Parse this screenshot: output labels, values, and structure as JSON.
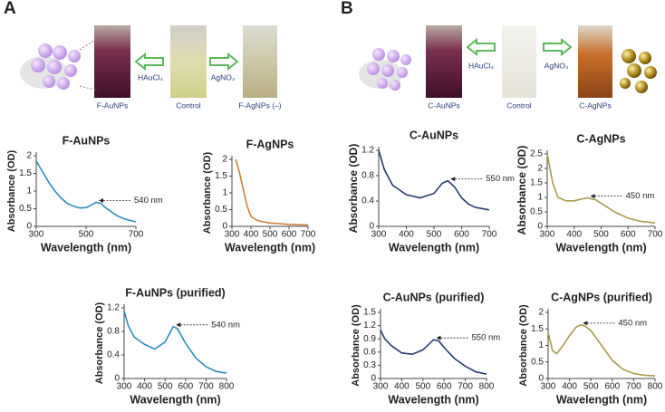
{
  "panels": [
    {
      "label": "A",
      "captions": [
        "F-AuNPs",
        "HAuCl₄",
        "Control",
        "AgNO₃",
        "F-AgNPs (–)"
      ]
    },
    {
      "label": "B",
      "captions": [
        "C-AuNPs",
        "HAuCl₄",
        "Control",
        "AgNO₃",
        "C-AgNPs"
      ]
    }
  ],
  "chart_data": [
    {
      "type": "line",
      "title": "F-AuNPs",
      "x_label": "Wavelength (nm)",
      "y_label": "Absorbance (OD)",
      "xlim": [
        300,
        700
      ],
      "xticks": [
        300,
        500,
        700
      ],
      "ylim": [
        0,
        2
      ],
      "yticks": [
        0,
        0.5,
        1,
        1.5,
        2
      ],
      "annotation": {
        "text": "540 nm",
        "x": 540,
        "y": 0.68
      },
      "series": [
        {
          "color": "#2b8cb8",
          "x": [
            300,
            325,
            350,
            375,
            400,
            425,
            450,
            475,
            500,
            525,
            540,
            560,
            575,
            600,
            625,
            650,
            675,
            700
          ],
          "values": [
            1.85,
            1.55,
            1.25,
            1.0,
            0.8,
            0.65,
            0.57,
            0.52,
            0.53,
            0.62,
            0.68,
            0.65,
            0.55,
            0.42,
            0.3,
            0.22,
            0.17,
            0.13
          ]
        }
      ]
    },
    {
      "type": "line",
      "title": "F-AgNPs",
      "x_label": "Wavelength (nm)",
      "y_label": "Absorbance (OD)",
      "xlim": [
        300,
        700
      ],
      "xticks": [
        300,
        400,
        500,
        600,
        700
      ],
      "ylim": [
        0,
        2
      ],
      "yticks": [
        0,
        0.5,
        1,
        1.5,
        2
      ],
      "series": [
        {
          "color": "#c8813a",
          "x": [
            320,
            340,
            360,
            380,
            400,
            425,
            450,
            500,
            550,
            600,
            650,
            700
          ],
          "values": [
            2.0,
            1.6,
            1.1,
            0.6,
            0.3,
            0.2,
            0.15,
            0.1,
            0.08,
            0.06,
            0.05,
            0.04
          ]
        }
      ]
    },
    {
      "type": "line",
      "title": "C-AuNPs",
      "x_label": "Wavelength (nm)",
      "y_label": "Absorbance (OD)",
      "xlim": [
        300,
        700
      ],
      "xticks": [
        300,
        400,
        500,
        600,
        700
      ],
      "ylim": [
        0,
        1.2
      ],
      "yticks": [
        0,
        0.4,
        0.8,
        1.2
      ],
      "annotation": {
        "text": "550 nm",
        "x": 550,
        "y": 0.72
      },
      "series": [
        {
          "color": "#253a6e",
          "x": [
            300,
            320,
            350,
            400,
            450,
            500,
            530,
            550,
            575,
            600,
            625,
            650,
            700
          ],
          "values": [
            1.2,
            0.9,
            0.65,
            0.5,
            0.45,
            0.52,
            0.68,
            0.72,
            0.62,
            0.45,
            0.35,
            0.3,
            0.26
          ]
        }
      ]
    },
    {
      "type": "line",
      "title": "C-AgNPs",
      "x_label": "Wavelength (nm)",
      "y_label": "Absorbance (OD)",
      "xlim": [
        300,
        700
      ],
      "xticks": [
        300,
        400,
        500,
        600,
        700
      ],
      "ylim": [
        0,
        2.5
      ],
      "yticks": [
        0,
        0.5,
        1,
        1.5,
        2,
        2.5
      ],
      "annotation": {
        "text": "450 nm",
        "x": 450,
        "y": 0.98
      },
      "series": [
        {
          "color": "#a89b4c",
          "x": [
            300,
            320,
            340,
            370,
            400,
            430,
            450,
            480,
            500,
            550,
            600,
            650,
            700
          ],
          "values": [
            2.5,
            1.5,
            1.0,
            0.88,
            0.88,
            0.95,
            0.98,
            0.92,
            0.8,
            0.5,
            0.28,
            0.17,
            0.12
          ]
        }
      ]
    },
    {
      "type": "line",
      "title": "F-AuNPs (purified)",
      "x_label": "Wavelength (nm)",
      "y_label": "Absorbance (OD)",
      "xlim": [
        300,
        800
      ],
      "xticks": [
        300,
        400,
        500,
        600,
        700,
        800
      ],
      "ylim": [
        0,
        1.2
      ],
      "yticks": [
        0,
        0.4,
        0.8,
        1.2
      ],
      "annotation": {
        "text": "540 nm",
        "x": 540,
        "y": 0.88
      },
      "series": [
        {
          "color": "#2b8cb8",
          "x": [
            300,
            320,
            350,
            400,
            450,
            500,
            540,
            560,
            600,
            650,
            700,
            750,
            800
          ],
          "values": [
            1.15,
            0.9,
            0.7,
            0.58,
            0.5,
            0.62,
            0.88,
            0.85,
            0.6,
            0.35,
            0.2,
            0.12,
            0.09
          ]
        }
      ]
    },
    {
      "type": "line",
      "title": "C-AuNPs (purified)",
      "x_label": "Wavelength (nm)",
      "y_label": "Absorbance (OD)",
      "xlim": [
        300,
        800
      ],
      "xticks": [
        300,
        400,
        500,
        600,
        700,
        800
      ],
      "ylim": [
        0,
        1.5
      ],
      "yticks": [
        0,
        0.3,
        0.6,
        0.9,
        1.2,
        1.5
      ],
      "annotation": {
        "text": "550 nm",
        "x": 550,
        "y": 0.88
      },
      "series": [
        {
          "color": "#253a6e",
          "x": [
            300,
            320,
            350,
            400,
            450,
            500,
            550,
            575,
            600,
            650,
            700,
            750,
            800
          ],
          "values": [
            1.1,
            0.9,
            0.75,
            0.58,
            0.55,
            0.65,
            0.88,
            0.85,
            0.7,
            0.45,
            0.28,
            0.15,
            0.1
          ]
        }
      ]
    },
    {
      "type": "line",
      "title": "C-AgNPs (purified)",
      "x_label": "Wavelength (nm)",
      "y_label": "Absorbance (OD)",
      "xlim": [
        300,
        800
      ],
      "xticks": [
        300,
        400,
        500,
        600,
        700,
        800
      ],
      "ylim": [
        0,
        2
      ],
      "yticks": [
        0,
        0.5,
        1,
        1.5,
        2
      ],
      "annotation": {
        "text": "450 nm",
        "x": 450,
        "y": 1.62
      },
      "series": [
        {
          "color": "#a89b4c",
          "x": [
            300,
            320,
            340,
            370,
            400,
            430,
            450,
            470,
            500,
            550,
            600,
            650,
            700,
            750,
            800
          ],
          "values": [
            1.4,
            0.85,
            0.75,
            1.0,
            1.3,
            1.55,
            1.62,
            1.6,
            1.45,
            1.0,
            0.55,
            0.28,
            0.15,
            0.1,
            0.08
          ]
        }
      ]
    }
  ]
}
